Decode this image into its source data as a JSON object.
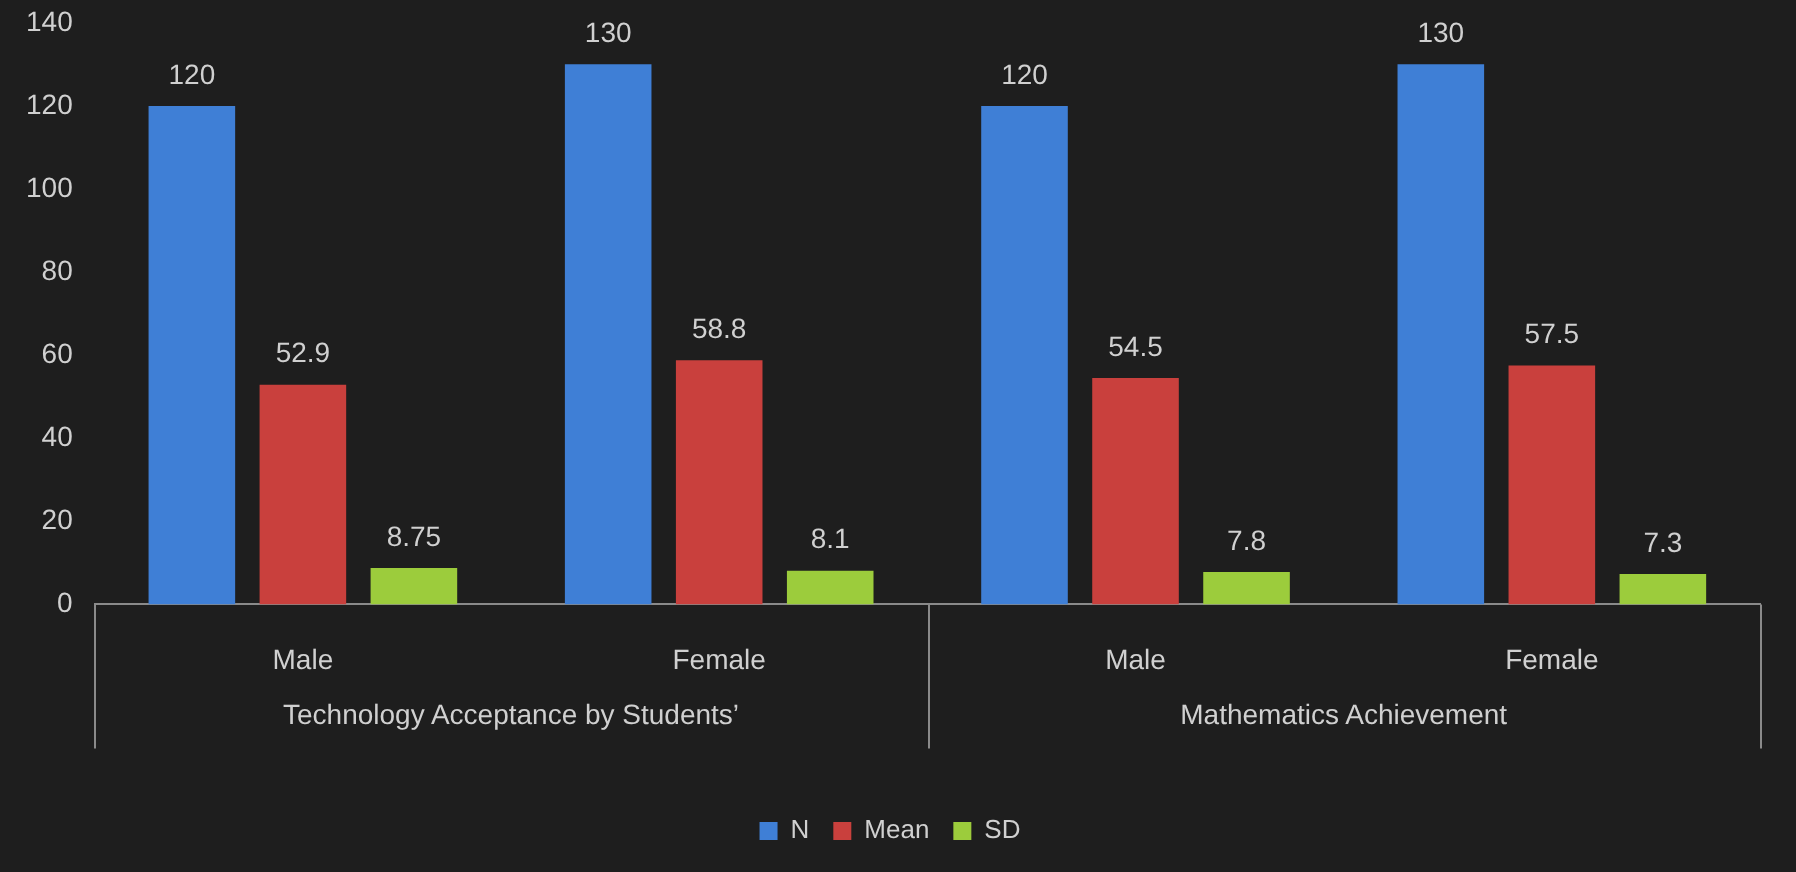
{
  "chart_data": {
    "type": "bar",
    "categories": [
      "Male",
      "Female",
      "Male",
      "Female"
    ],
    "series": [
      {
        "name": "N",
        "color": "#3f7fd6",
        "values": [
          120,
          130,
          120,
          130
        ]
      },
      {
        "name": "Mean",
        "color": "#c9403d",
        "values": [
          52.9,
          58.8,
          54.5,
          57.5
        ]
      },
      {
        "name": "SD",
        "color": "#9ccc3c",
        "values": [
          8.75,
          8.1,
          7.8,
          7.3
        ]
      }
    ],
    "ylim": [
      0,
      140
    ],
    "yticks": [
      0,
      20,
      40,
      60,
      80,
      100,
      120,
      140
    ],
    "grid": false,
    "legend": "bottom",
    "data_labels": true,
    "annotations": [
      "Technology Acceptance by Students’",
      "Mathematics Achievement"
    ]
  }
}
